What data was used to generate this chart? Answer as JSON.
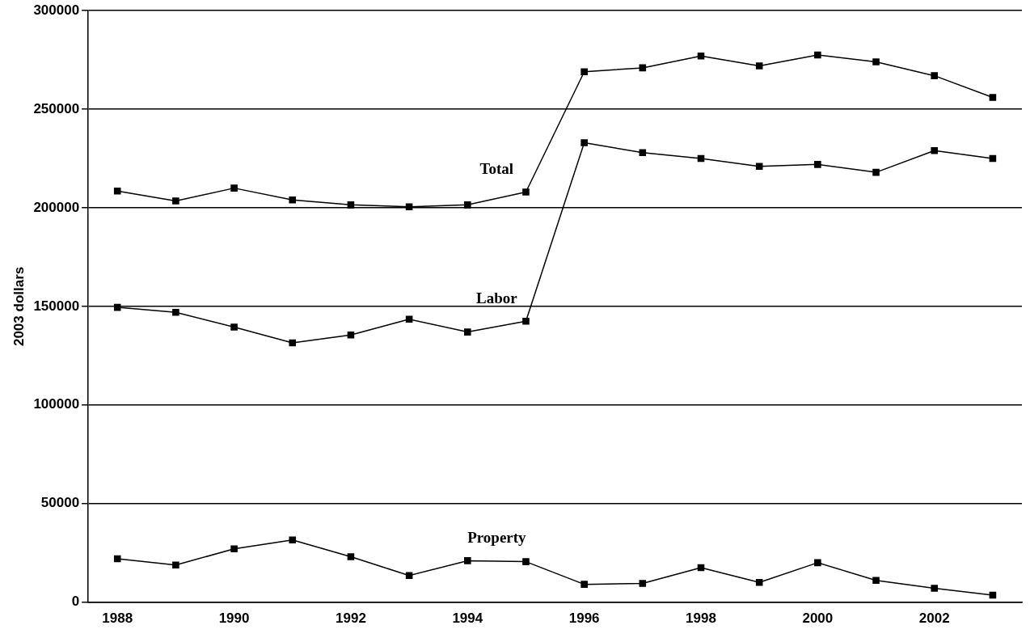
{
  "chart_data": {
    "type": "line",
    "ylabel": "2003 dollars",
    "categories": [
      "1988",
      null,
      "1990",
      null,
      "1992",
      null,
      "1994",
      null,
      "1996",
      null,
      "1998",
      null,
      "2000",
      null,
      "2002",
      null
    ],
    "series": [
      {
        "name": "Total",
        "color": "#000000",
        "values": [
          208500,
          203500,
          210000,
          204000,
          201500,
          200500,
          201500,
          208000,
          269000,
          271000,
          277000,
          272000,
          277500,
          274000,
          267000,
          256000
        ]
      },
      {
        "name": "Labor",
        "color": "#000000",
        "values": [
          149500,
          147000,
          139500,
          131500,
          135500,
          143500,
          137000,
          142500,
          233000,
          228000,
          225000,
          221000,
          222000,
          218000,
          229000,
          225000
        ]
      },
      {
        "name": "Property",
        "color": "#000000",
        "values": [
          22000,
          18800,
          27000,
          31500,
          23000,
          13500,
          21000,
          20500,
          9000,
          9500,
          17500,
          10000,
          20000,
          11000,
          7000,
          3500
        ]
      }
    ],
    "ylim": [
      0,
      300000
    ],
    "yticks": [
      0,
      50000,
      100000,
      150000,
      200000,
      250000,
      300000
    ],
    "grid": "y",
    "legend": false,
    "marker": "square",
    "line_style": "solid"
  }
}
